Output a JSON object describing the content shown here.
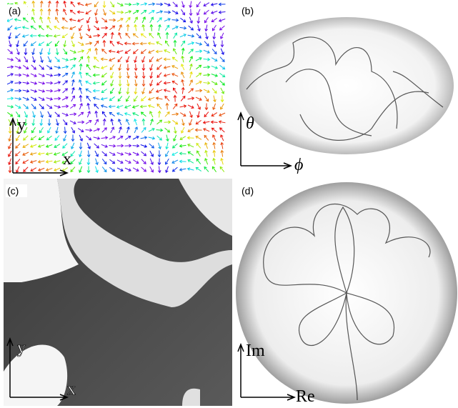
{
  "panels": [
    {
      "label": "(a)",
      "axes": [
        "y",
        "x"
      ]
    },
    {
      "label": "(b)",
      "axes": [
        "θ",
        "ϕ"
      ]
    },
    {
      "label": "(c)",
      "axes": [
        "y",
        "x"
      ]
    },
    {
      "label": "(d)",
      "axes": [
        "Im",
        "Re"
      ]
    }
  ]
}
